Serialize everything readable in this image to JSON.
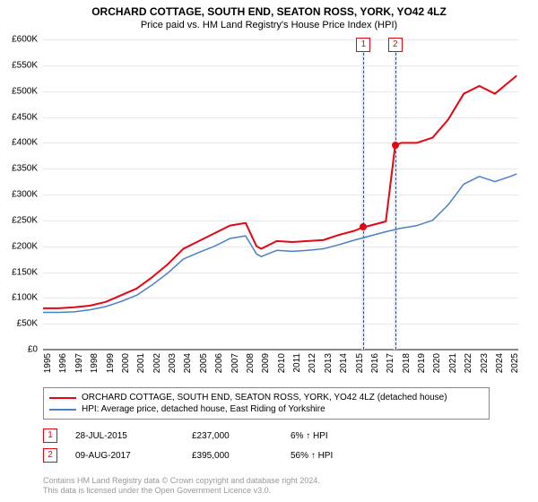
{
  "title": "ORCHARD COTTAGE, SOUTH END, SEATON ROSS, YORK, YO42 4LZ",
  "subtitle": "Price paid vs. HM Land Registry's House Price Index (HPI)",
  "chart": {
    "type": "line",
    "background_color": "#ffffff",
    "grid_color": "#e8e8e8",
    "axis_color": "#888888",
    "xlim": [
      1995,
      2025.5
    ],
    "ylim": [
      0,
      600000
    ],
    "ytick_step": 50000,
    "yticks": [
      {
        "v": 0,
        "label": "£0"
      },
      {
        "v": 50000,
        "label": "£50K"
      },
      {
        "v": 100000,
        "label": "£100K"
      },
      {
        "v": 150000,
        "label": "£150K"
      },
      {
        "v": 200000,
        "label": "£200K"
      },
      {
        "v": 250000,
        "label": "£250K"
      },
      {
        "v": 300000,
        "label": "£300K"
      },
      {
        "v": 350000,
        "label": "£350K"
      },
      {
        "v": 400000,
        "label": "£400K"
      },
      {
        "v": 450000,
        "label": "£450K"
      },
      {
        "v": 500000,
        "label": "£500K"
      },
      {
        "v": 550000,
        "label": "£550K"
      },
      {
        "v": 600000,
        "label": "£600K"
      }
    ],
    "xticks": [
      1995,
      1996,
      1997,
      1998,
      1999,
      2000,
      2001,
      2002,
      2003,
      2004,
      2005,
      2006,
      2007,
      2008,
      2009,
      2010,
      2011,
      2012,
      2013,
      2014,
      2015,
      2016,
      2017,
      2018,
      2019,
      2020,
      2021,
      2022,
      2023,
      2024,
      2025
    ],
    "series": [
      {
        "name": "property",
        "label": "ORCHARD COTTAGE, SOUTH END, SEATON ROSS, YORK, YO42 4LZ (detached house)",
        "color": "#e30613",
        "line_width": 2,
        "points": [
          [
            1995,
            80000
          ],
          [
            1996,
            80000
          ],
          [
            1997,
            82000
          ],
          [
            1998,
            85000
          ],
          [
            1999,
            92000
          ],
          [
            2000,
            105000
          ],
          [
            2001,
            118000
          ],
          [
            2002,
            140000
          ],
          [
            2003,
            165000
          ],
          [
            2004,
            195000
          ],
          [
            2005,
            210000
          ],
          [
            2006,
            225000
          ],
          [
            2007,
            240000
          ],
          [
            2008,
            245000
          ],
          [
            2008.7,
            200000
          ],
          [
            2009,
            195000
          ],
          [
            2010,
            210000
          ],
          [
            2011,
            208000
          ],
          [
            2012,
            210000
          ],
          [
            2013,
            212000
          ],
          [
            2014,
            222000
          ],
          [
            2015,
            230000
          ],
          [
            2015.57,
            237000
          ],
          [
            2016,
            240000
          ],
          [
            2017,
            248000
          ],
          [
            2017.6,
            395000
          ],
          [
            2018,
            400000
          ],
          [
            2019,
            400000
          ],
          [
            2020,
            410000
          ],
          [
            2021,
            445000
          ],
          [
            2022,
            495000
          ],
          [
            2023,
            510000
          ],
          [
            2024,
            495000
          ],
          [
            2025,
            520000
          ],
          [
            2025.4,
            530000
          ]
        ]
      },
      {
        "name": "hpi",
        "label": "HPI: Average price, detached house, East Riding of Yorkshire",
        "color": "#4a80c7",
        "line_width": 1.5,
        "points": [
          [
            1995,
            72000
          ],
          [
            1996,
            72000
          ],
          [
            1997,
            73000
          ],
          [
            1998,
            77000
          ],
          [
            1999,
            83000
          ],
          [
            2000,
            93000
          ],
          [
            2001,
            105000
          ],
          [
            2002,
            125000
          ],
          [
            2003,
            148000
          ],
          [
            2004,
            175000
          ],
          [
            2005,
            188000
          ],
          [
            2006,
            200000
          ],
          [
            2007,
            215000
          ],
          [
            2008,
            220000
          ],
          [
            2008.7,
            185000
          ],
          [
            2009,
            180000
          ],
          [
            2010,
            192000
          ],
          [
            2011,
            190000
          ],
          [
            2012,
            192000
          ],
          [
            2013,
            195000
          ],
          [
            2014,
            203000
          ],
          [
            2015,
            212000
          ],
          [
            2016,
            220000
          ],
          [
            2017,
            228000
          ],
          [
            2018,
            235000
          ],
          [
            2019,
            240000
          ],
          [
            2020,
            250000
          ],
          [
            2021,
            280000
          ],
          [
            2022,
            320000
          ],
          [
            2023,
            335000
          ],
          [
            2024,
            325000
          ],
          [
            2025,
            335000
          ],
          [
            2025.4,
            340000
          ]
        ]
      }
    ],
    "sale_markers": [
      {
        "x": 2015.57,
        "y": 237000,
        "color": "#e30613"
      },
      {
        "x": 2017.6,
        "y": 395000,
        "color": "#e30613"
      }
    ],
    "events": [
      {
        "n": "1",
        "x": 2015.57,
        "line_color": "#e30613",
        "band_color": "#e6eefc",
        "band_width": 4
      },
      {
        "n": "2",
        "x": 2017.6,
        "line_color": "#e30613",
        "band_color": "#e6eefc",
        "band_width": 4
      }
    ],
    "event_badge_border": "#e30613",
    "event_badge_text": "#e30613"
  },
  "legend": {
    "border_color": "#888888",
    "rows": [
      {
        "color": "#e30613",
        "label": "ORCHARD COTTAGE, SOUTH END, SEATON ROSS, YORK, YO42 4LZ (detached house)"
      },
      {
        "color": "#4a80c7",
        "label": "HPI: Average price, detached house, East Riding of Yorkshire"
      }
    ]
  },
  "sales": [
    {
      "n": "1",
      "date": "28-JUL-2015",
      "price": "£237,000",
      "diff": "6% ↑ HPI",
      "badge_color": "#e30613"
    },
    {
      "n": "2",
      "date": "09-AUG-2017",
      "price": "£395,000",
      "diff": "56% ↑ HPI",
      "badge_color": "#e30613"
    }
  ],
  "footnote": {
    "line1": "Contains HM Land Registry data © Crown copyright and database right 2024.",
    "line2": "This data is licensed under the Open Government Licence v3.0."
  }
}
